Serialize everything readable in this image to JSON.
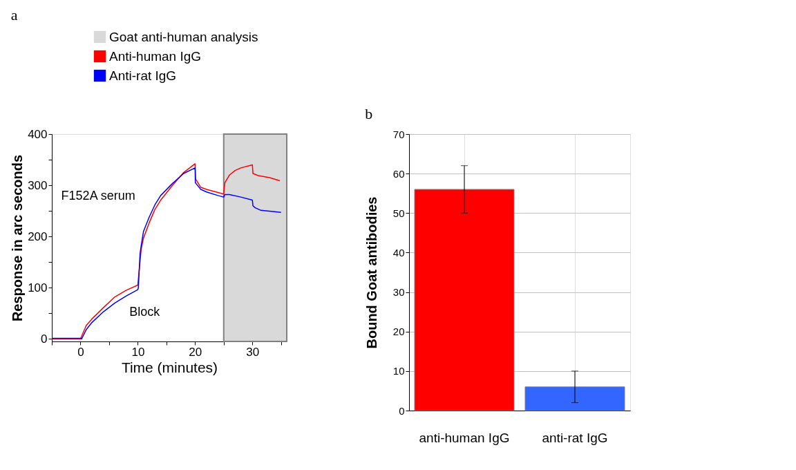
{
  "chart_data": [
    {
      "type": "line",
      "title": "a",
      "xlabel": "Time (minutes)",
      "ylabel": "Response in arc seconds",
      "xlim": [
        -5,
        36
      ],
      "xticks": [
        {
          "value": -5,
          "label": null
        },
        0,
        {
          "value": 5,
          "label": null
        },
        10,
        {
          "value": 15,
          "label": null
        },
        20,
        {
          "value": 25,
          "label": null
        },
        30,
        {
          "value": 35,
          "label": null
        }
      ],
      "ylim": [
        -5,
        400
      ],
      "yticks": [
        0,
        {
          "value": 50,
          "label": null
        },
        100,
        {
          "value": 150,
          "label": null
        },
        200,
        {
          "value": 250,
          "label": null
        },
        300,
        {
          "value": 350,
          "label": null
        },
        400
      ],
      "grid": false,
      "legend": "top left",
      "marker": "none",
      "line_style": "solid",
      "bands": [
        {
          "axis": "x",
          "from": 25,
          "to": 36,
          "label": "Goat anti-human analysis",
          "color": "#d9d9d9"
        }
      ],
      "annotations": [
        "F152A serum",
        "Block"
      ],
      "series": [
        {
          "name": "Anti-human IgG",
          "color": "#ff0000",
          "x": [
            -5,
            0,
            1,
            2,
            4,
            6,
            8,
            10,
            10.6,
            11,
            12,
            13,
            14,
            16,
            18,
            20,
            20.1,
            21,
            22,
            24,
            25,
            25.2,
            26,
            27,
            28,
            30,
            30.1,
            31,
            33,
            34.8
          ],
          "values": [
            0,
            0,
            26,
            39,
            61,
            82,
            95,
            105,
            175,
            197,
            227,
            253,
            271,
            299,
            325,
            342,
            312,
            296,
            292,
            286,
            283,
            305,
            320,
            329,
            334,
            340,
            323,
            319,
            315,
            309
          ]
        },
        {
          "name": "Anti-rat IgG",
          "color": "#0000ff",
          "x": [
            -5,
            0,
            0.2,
            1,
            2,
            4,
            6,
            8,
            10,
            10.1,
            10.4,
            10.6,
            11,
            12,
            13,
            14,
            16,
            18,
            20,
            20.05,
            21,
            22,
            24,
            25,
            25.2,
            26,
            28,
            30,
            30.1,
            30.5,
            31.5,
            35
          ],
          "values": [
            1,
            1,
            0,
            18,
            32,
            53,
            70,
            84,
            96,
            100,
            167,
            182,
            210,
            238,
            262,
            280,
            303,
            323,
            334,
            305,
            292,
            287,
            280,
            277,
            282,
            282,
            277,
            271,
            260,
            256,
            251,
            247
          ]
        }
      ]
    },
    {
      "type": "bar",
      "title": "b",
      "ylabel": "Bound Goat antibodies",
      "categories": [
        "anti-human IgG",
        "anti-rat IgG"
      ],
      "values": [
        56,
        6
      ],
      "errors": [
        6,
        4
      ],
      "colors": [
        "#ff0000",
        "#3366ff"
      ],
      "ylim": [
        0,
        70
      ],
      "yticks": [
        0,
        10,
        20,
        30,
        40,
        50,
        60,
        70
      ],
      "grid": true,
      "legend": false
    }
  ]
}
